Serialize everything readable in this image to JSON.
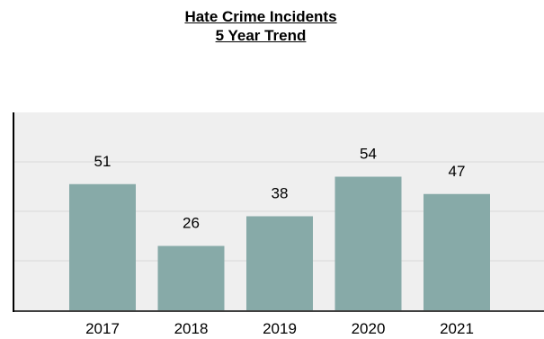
{
  "chart_data": {
    "type": "bar",
    "title": "Hate Crime Incidents",
    "subtitle": "5 Year Trend",
    "categories": [
      "2017",
      "2018",
      "2019",
      "2020",
      "2021"
    ],
    "values": [
      51,
      26,
      38,
      54,
      47
    ],
    "xlabel": "",
    "ylabel": "",
    "ylim": [
      0,
      80
    ],
    "grid": true,
    "legend": "none",
    "bar_color": "#87AAA8",
    "plot_background": "#EFEFEF",
    "grid_color": "#D9D9D9"
  }
}
